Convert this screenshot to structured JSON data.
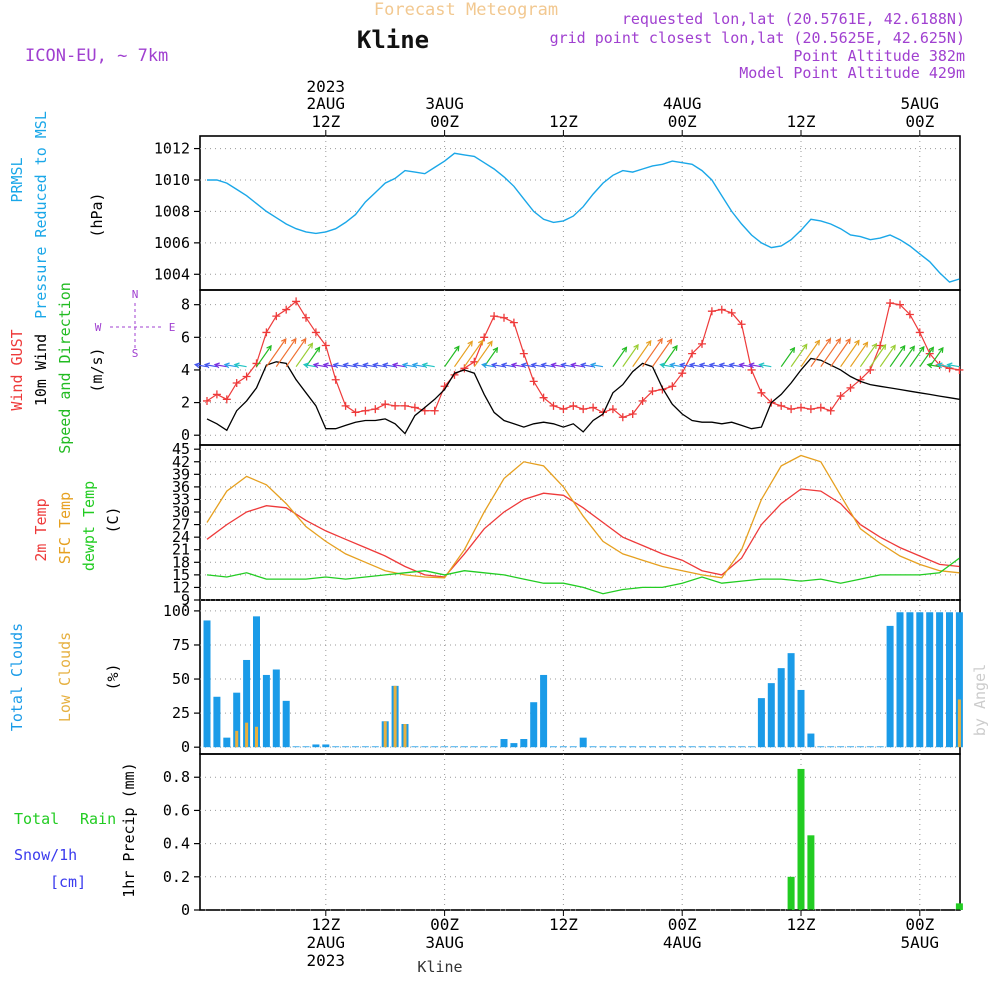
{
  "header": {
    "title": "Forecast Meteogram",
    "location": "Kline",
    "model": "ICON-EU, ~ 7km",
    "requested": "requested lon,lat (20.5761E, 42.6188N)",
    "gridpoint": "grid point closest lon,lat (20.5625E, 42.625N)",
    "point_alt": "Point Altitude 382m",
    "model_alt": "Model Point Altitude 429m",
    "watermark": "by Angel",
    "footer": "Kline"
  },
  "colors": {
    "pressure": "#1aa7e8",
    "gust": "#ee3a3a",
    "wind": "#000000",
    "dir": "#22bb22",
    "t2m": "#ee3a3a",
    "tsfc": "#e6a020",
    "dew": "#22cc22",
    "cloud_total": "#1a9be8",
    "cloud_low": "#e6b040",
    "rain": "#22cc22",
    "snow": "#3a3aee",
    "purple": "#a040d0",
    "orange_title": "#f2c890"
  },
  "time_axis": {
    "top_ticks": [
      {
        "h": 12,
        "l1": "2023",
        "l2": "2AUG",
        "l3": "12Z"
      },
      {
        "h": 24,
        "l1": "",
        "l2": "3AUG",
        "l3": "00Z"
      },
      {
        "h": 36,
        "l1": "",
        "l2": "",
        "l3": "12Z"
      },
      {
        "h": 48,
        "l1": "",
        "l2": "4AUG",
        "l3": "00Z"
      },
      {
        "h": 60,
        "l1": "",
        "l2": "",
        "l3": "12Z"
      },
      {
        "h": 72,
        "l1": "",
        "l2": "5AUG",
        "l3": "00Z"
      }
    ],
    "bottom_ticks": [
      {
        "h": 12,
        "l1": "12Z",
        "l2": "2AUG",
        "l3": "2023"
      },
      {
        "h": 24,
        "l1": "00Z",
        "l2": "3AUG",
        "l3": ""
      },
      {
        "h": 36,
        "l1": "12Z",
        "l2": "",
        "l3": ""
      },
      {
        "h": 48,
        "l1": "00Z",
        "l2": "4AUG",
        "l3": ""
      },
      {
        "h": 60,
        "l1": "12Z",
        "l2": "",
        "l3": ""
      },
      {
        "h": 72,
        "l1": "00Z",
        "l2": "5AUG",
        "l3": ""
      }
    ]
  },
  "panels": {
    "pressure": {
      "label1": "PRMSL",
      "label2": "Pressure Reduced to MSL",
      "unit": "(hPa)"
    },
    "wind": {
      "label_gust": "Wind GUST",
      "label_wind": "10m Wind",
      "label_dir": "Speed and Direction",
      "unit": "(m/s)",
      "compass_n": "N",
      "compass_s": "S",
      "compass_w": "W",
      "compass_e": "E"
    },
    "temp": {
      "label_t2m": "2m Temp",
      "label_sfc": "SFC Temp",
      "label_dew": "dewpt Temp",
      "unit": "(C)"
    },
    "cloud": {
      "label_total": "Total Clouds",
      "label_low": "Low Clouds",
      "unit": "(%)"
    },
    "precip": {
      "label_rain_total": "Total",
      "label_rain": "Rain",
      "label_snow": "Snow/1h",
      "label_cm": "[cm]",
      "unit": "1hr Precip (mm)"
    }
  },
  "chart_data": [
    {
      "type": "line",
      "name": "pressure",
      "ylim": [
        1003,
        1012.8
      ],
      "yticks": [
        1004,
        1006,
        1008,
        1010,
        1012
      ],
      "x_hours": [
        0,
        1,
        2,
        3,
        4,
        5,
        6,
        7,
        8,
        9,
        10,
        11,
        12,
        13,
        14,
        15,
        16,
        17,
        18,
        19,
        20,
        21,
        22,
        23,
        24,
        25,
        26,
        27,
        28,
        29,
        30,
        31,
        32,
        33,
        34,
        35,
        36,
        37,
        38,
        39,
        40,
        41,
        42,
        43,
        44,
        45,
        46,
        47,
        48,
        49,
        50,
        51,
        52,
        53,
        54,
        55,
        56,
        57,
        58,
        59,
        60,
        61,
        62,
        63,
        64,
        65,
        66,
        67,
        68,
        69,
        70,
        71,
        72,
        73,
        74,
        75,
        76
      ],
      "values": [
        1010,
        1010,
        1009.8,
        1009.4,
        1009,
        1008.5,
        1008,
        1007.6,
        1007.2,
        1006.9,
        1006.7,
        1006.6,
        1006.7,
        1006.9,
        1007.3,
        1007.8,
        1008.6,
        1009.2,
        1009.8,
        1010.1,
        1010.6,
        1010.5,
        1010.4,
        1010.8,
        1011.2,
        1011.7,
        1011.6,
        1011.5,
        1011.1,
        1010.7,
        1010.2,
        1009.6,
        1008.8,
        1008,
        1007.5,
        1007.3,
        1007.4,
        1007.7,
        1008.3,
        1009.1,
        1009.8,
        1010.3,
        1010.6,
        1010.5,
        1010.7,
        1010.9,
        1011,
        1011.2,
        1011.1,
        1011,
        1010.6,
        1010,
        1009,
        1008,
        1007.2,
        1006.5,
        1006,
        1005.7,
        1005.8,
        1006.2,
        1006.8,
        1007.5,
        1007.4,
        1007.2,
        1006.9,
        1006.5,
        1006.4,
        1006.2,
        1006.3,
        1006.5,
        1006.2,
        1005.8,
        1005.3,
        1004.8,
        1004.1,
        1003.5,
        1003.7
      ]
    },
    {
      "type": "line",
      "name": "wind",
      "ylim": [
        -0.6,
        8.9
      ],
      "yticks": [
        0,
        2,
        4,
        6,
        8
      ],
      "x_hours": [
        0,
        1,
        2,
        3,
        4,
        5,
        6,
        7,
        8,
        9,
        10,
        11,
        12,
        13,
        14,
        15,
        16,
        17,
        18,
        19,
        20,
        21,
        22,
        23,
        24,
        25,
        26,
        27,
        28,
        29,
        30,
        31,
        32,
        33,
        34,
        35,
        36,
        37,
        38,
        39,
        40,
        41,
        42,
        43,
        44,
        45,
        46,
        47,
        48,
        49,
        50,
        51,
        52,
        53,
        54,
        55,
        56,
        57,
        58,
        59,
        60,
        61,
        62,
        63,
        64,
        65,
        66,
        67,
        68,
        69,
        70,
        71,
        72,
        73,
        74,
        75,
        76
      ],
      "series": [
        {
          "name": "Wind GUST",
          "values": [
            2.1,
            2.5,
            2.2,
            3.2,
            3.6,
            4.4,
            6.3,
            7.3,
            7.7,
            8.2,
            7.2,
            6.3,
            5.5,
            3.4,
            1.8,
            1.4,
            1.5,
            1.6,
            1.9,
            1.8,
            1.8,
            1.7,
            1.5,
            1.5,
            3,
            3.7,
            4.1,
            4.5,
            6,
            7.3,
            7.2,
            6.9,
            5,
            3.3,
            2.3,
            1.8,
            1.6,
            1.8,
            1.6,
            1.7,
            1.4,
            1.6,
            1.1,
            1.3,
            2.1,
            2.7,
            2.8,
            3,
            3.8,
            5,
            5.6,
            7.6,
            7.7,
            7.5,
            6.8,
            4,
            2.6,
            2,
            1.8,
            1.6,
            1.7,
            1.6,
            1.7,
            1.5,
            2.4,
            2.9,
            3.4,
            4,
            5.5,
            8.1,
            8,
            7.4,
            6.3,
            5,
            4.3,
            4.1,
            4
          ]
        },
        {
          "name": "10m Wind",
          "values": [
            1,
            0.7,
            0.3,
            1.5,
            2.1,
            2.9,
            4.3,
            4.5,
            4.4,
            3.4,
            2.6,
            1.8,
            0.4,
            0.4,
            0.6,
            0.8,
            0.9,
            0.9,
            1,
            0.7,
            0.1,
            1.2,
            1.7,
            2.2,
            2.8,
            3.8,
            4,
            3.8,
            2.5,
            1.4,
            0.9,
            0.7,
            0.5,
            0.7,
            0.8,
            0.7,
            0.5,
            0.7,
            0.2,
            0.9,
            1.3,
            2.6,
            3.1,
            3.9,
            4.4,
            4.2,
            2.9,
            1.9,
            1.3,
            0.9,
            0.8,
            0.8,
            0.7,
            0.8,
            0.6,
            0.4,
            0.5,
            2,
            2.5,
            3.2,
            4,
            4.7,
            4.6,
            4.3,
            4,
            3.6,
            3.3,
            3.1,
            3,
            2.9,
            2.8,
            2.7,
            2.6,
            2.5,
            2.4,
            2.3,
            2.2
          ]
        }
      ]
    },
    {
      "type": "line",
      "name": "temperature",
      "ylim": [
        9,
        46
      ],
      "yticks": [
        9,
        12,
        15,
        18,
        21,
        24,
        27,
        30,
        33,
        36,
        39,
        42,
        45
      ],
      "x_hours": [
        0,
        2,
        4,
        6,
        8,
        10,
        12,
        14,
        16,
        18,
        20,
        22,
        24,
        26,
        28,
        30,
        32,
        34,
        36,
        38,
        40,
        42,
        44,
        46,
        48,
        50,
        52,
        54,
        56,
        58,
        60,
        62,
        64,
        66,
        68,
        70,
        72,
        74,
        76
      ],
      "series": [
        {
          "name": "2m Temp",
          "values": [
            23.5,
            27,
            30,
            31.5,
            31,
            28,
            25.5,
            23.5,
            21.5,
            19.5,
            17,
            15,
            14.5,
            20,
            26,
            30,
            33,
            34.5,
            34,
            31,
            27.5,
            24,
            22,
            20,
            18.5,
            16,
            15,
            19,
            27,
            32,
            35.5,
            35,
            32,
            27,
            24,
            21.5,
            19.5,
            17.5,
            17
          ]
        },
        {
          "name": "SFC Temp",
          "values": [
            27.5,
            35,
            38.5,
            36.5,
            32,
            26.5,
            23,
            20,
            18,
            16,
            15,
            14.5,
            14.3,
            21,
            30,
            38,
            42,
            41,
            36,
            29,
            23,
            20,
            18.5,
            17,
            16,
            15,
            14.3,
            21,
            33,
            41,
            43.5,
            42,
            34,
            26,
            22.5,
            19.5,
            17.5,
            16,
            15.5
          ]
        },
        {
          "name": "dewpt Temp",
          "values": [
            15,
            14.5,
            15.5,
            14,
            14,
            14,
            14.5,
            14,
            14.5,
            15,
            15.5,
            16,
            15,
            16,
            15.5,
            15,
            14,
            13,
            13,
            12,
            10.5,
            11.5,
            12,
            12,
            13,
            14.5,
            13,
            13.5,
            14,
            14,
            13.5,
            14,
            13,
            14,
            15,
            15,
            15,
            15.5,
            19
          ]
        }
      ]
    },
    {
      "type": "bar",
      "name": "clouds",
      "ylim": [
        -5,
        108
      ],
      "yticks": [
        0,
        25,
        50,
        75,
        100
      ],
      "x_hours": [
        0,
        1,
        2,
        3,
        4,
        5,
        6,
        7,
        8,
        9,
        10,
        11,
        12,
        13,
        14,
        15,
        16,
        17,
        18,
        19,
        20,
        21,
        22,
        23,
        24,
        25,
        26,
        27,
        28,
        29,
        30,
        31,
        32,
        33,
        34,
        35,
        36,
        37,
        38,
        39,
        40,
        41,
        42,
        43,
        44,
        45,
        46,
        47,
        48,
        49,
        50,
        51,
        52,
        53,
        54,
        55,
        56,
        57,
        58,
        59,
        60,
        61,
        62,
        63,
        64,
        65,
        66,
        67,
        68,
        69,
        70,
        71,
        72,
        73,
        74,
        75,
        76
      ],
      "series": [
        {
          "name": "Total Clouds",
          "values": [
            93,
            37,
            7,
            40,
            64,
            96,
            53,
            57,
            34,
            0,
            0,
            2,
            2,
            0,
            0,
            0,
            0,
            0,
            19,
            45,
            17,
            0,
            0,
            0,
            0,
            0,
            0,
            0,
            0,
            0,
            6,
            3,
            6,
            33,
            53,
            0,
            0,
            0,
            7,
            0,
            0,
            0,
            0,
            0,
            0,
            0,
            0,
            0,
            0,
            0,
            0,
            0,
            0,
            0,
            0,
            0,
            36,
            47,
            58,
            69,
            42,
            10,
            0,
            0,
            0,
            0,
            0,
            0,
            0,
            89,
            99,
            99,
            99,
            99,
            99,
            99,
            99
          ]
        },
        {
          "name": "Low Clouds",
          "values": [
            0,
            0,
            0,
            12,
            18,
            15,
            0,
            0,
            0,
            0,
            0,
            0,
            0,
            0,
            0,
            0,
            0,
            0,
            19,
            45,
            17,
            0,
            0,
            0,
            0,
            0,
            0,
            0,
            0,
            0,
            0,
            0,
            0,
            0,
            0,
            0,
            0,
            0,
            0,
            0,
            0,
            0,
            0,
            0,
            0,
            0,
            0,
            0,
            0,
            0,
            0,
            0,
            0,
            0,
            0,
            0,
            0,
            0,
            0,
            0,
            0,
            0,
            0,
            0,
            0,
            0,
            0,
            0,
            0,
            0,
            0,
            0,
            0,
            0,
            0,
            0,
            35
          ]
        }
      ]
    },
    {
      "type": "bar",
      "name": "precip",
      "ylim": [
        0,
        0.94
      ],
      "yticks": [
        0,
        0.2,
        0.4,
        0.6,
        0.8
      ],
      "ytick_labels": [
        "0",
        "0.2",
        "0.4",
        "0.6",
        "0.8"
      ],
      "x_hours": [
        59,
        60,
        61,
        76
      ],
      "series": [
        {
          "name": "Rain",
          "values": [
            0.2,
            0.85,
            0.45,
            0.04
          ]
        }
      ]
    }
  ]
}
